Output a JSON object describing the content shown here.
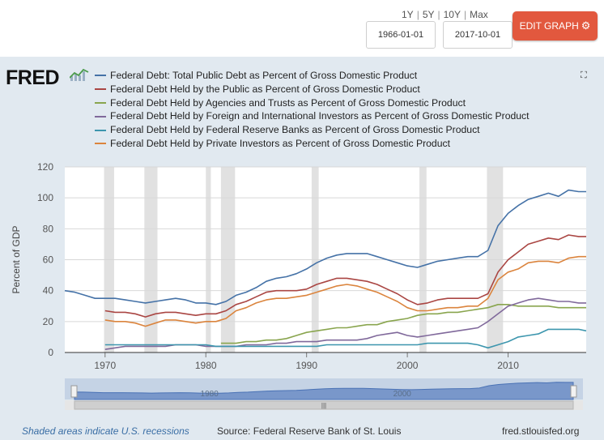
{
  "toolbar": {
    "range_1y": "1Y",
    "range_5y": "5Y",
    "range_10y": "10Y",
    "range_max": "Max",
    "start_date": "1966-01-01",
    "end_date": "2017-10-01",
    "edit_label": "EDIT GRAPH",
    "edit_color": "#e2583e"
  },
  "logo": {
    "text": "FRED"
  },
  "footer": {
    "recession_note": "Shaded areas indicate U.S. recessions",
    "source": "Source: Federal Reserve Bank of St. Louis",
    "site": "fred.stlouisfed.org"
  },
  "chart_data": {
    "type": "line",
    "ylabel": "Percent of GDP",
    "ylim": [
      0,
      120
    ],
    "yticks": [
      0,
      20,
      40,
      60,
      80,
      100,
      120
    ],
    "xlim": [
      1966.0,
      2017.75
    ],
    "xticks": [
      1970,
      1980,
      1990,
      2000,
      2010
    ],
    "recessions": [
      [
        1969.9,
        1970.9
      ],
      [
        1973.9,
        1975.2
      ],
      [
        1980.0,
        1980.5
      ],
      [
        1981.5,
        1982.9
      ],
      [
        1990.5,
        1991.2
      ],
      [
        2001.2,
        2001.9
      ],
      [
        2007.9,
        2009.5
      ]
    ],
    "navigator_labels": [
      "1980",
      "2000"
    ],
    "series": [
      {
        "name": "Federal Debt: Total Public Debt as Percent of Gross Domestic Product",
        "color": "#4572a7",
        "points": [
          [
            1966,
            40
          ],
          [
            1967,
            39
          ],
          [
            1968,
            37
          ],
          [
            1969,
            35
          ],
          [
            1970,
            35
          ],
          [
            1971,
            35
          ],
          [
            1972,
            34
          ],
          [
            1973,
            33
          ],
          [
            1974,
            32
          ],
          [
            1975,
            33
          ],
          [
            1976,
            34
          ],
          [
            1977,
            35
          ],
          [
            1978,
            34
          ],
          [
            1979,
            32
          ],
          [
            1980,
            32
          ],
          [
            1981,
            31
          ],
          [
            1982,
            33
          ],
          [
            1983,
            37
          ],
          [
            1984,
            39
          ],
          [
            1985,
            42
          ],
          [
            1986,
            46
          ],
          [
            1987,
            48
          ],
          [
            1988,
            49
          ],
          [
            1989,
            51
          ],
          [
            1990,
            54
          ],
          [
            1991,
            58
          ],
          [
            1992,
            61
          ],
          [
            1993,
            63
          ],
          [
            1994,
            64
          ],
          [
            1995,
            64
          ],
          [
            1996,
            64
          ],
          [
            1997,
            62
          ],
          [
            1998,
            60
          ],
          [
            1999,
            58
          ],
          [
            2000,
            56
          ],
          [
            2001,
            55
          ],
          [
            2002,
            57
          ],
          [
            2003,
            59
          ],
          [
            2004,
            60
          ],
          [
            2005,
            61
          ],
          [
            2006,
            62
          ],
          [
            2007,
            62
          ],
          [
            2008,
            66
          ],
          [
            2009,
            82
          ],
          [
            2010,
            90
          ],
          [
            2011,
            95
          ],
          [
            2012,
            99
          ],
          [
            2013,
            101
          ],
          [
            2014,
            103
          ],
          [
            2015,
            101
          ],
          [
            2016,
            105
          ],
          [
            2017,
            104
          ],
          [
            2017.75,
            104
          ]
        ]
      },
      {
        "name": "Federal Debt Held by the Public as Percent of Gross Domestic Product",
        "color": "#aa4643",
        "points": [
          [
            1970,
            27
          ],
          [
            1971,
            26
          ],
          [
            1972,
            26
          ],
          [
            1973,
            25
          ],
          [
            1974,
            23
          ],
          [
            1975,
            25
          ],
          [
            1976,
            26
          ],
          [
            1977,
            26
          ],
          [
            1978,
            25
          ],
          [
            1979,
            24
          ],
          [
            1980,
            25
          ],
          [
            1981,
            25
          ],
          [
            1982,
            27
          ],
          [
            1983,
            31
          ],
          [
            1984,
            33
          ],
          [
            1985,
            36
          ],
          [
            1986,
            39
          ],
          [
            1987,
            40
          ],
          [
            1988,
            40
          ],
          [
            1989,
            40
          ],
          [
            1990,
            41
          ],
          [
            1991,
            44
          ],
          [
            1992,
            46
          ],
          [
            1993,
            48
          ],
          [
            1994,
            48
          ],
          [
            1995,
            47
          ],
          [
            1996,
            46
          ],
          [
            1997,
            44
          ],
          [
            1998,
            41
          ],
          [
            1999,
            38
          ],
          [
            2000,
            34
          ],
          [
            2001,
            31
          ],
          [
            2002,
            32
          ],
          [
            2003,
            34
          ],
          [
            2004,
            35
          ],
          [
            2005,
            35
          ],
          [
            2006,
            35
          ],
          [
            2007,
            35
          ],
          [
            2008,
            38
          ],
          [
            2009,
            52
          ],
          [
            2010,
            60
          ],
          [
            2011,
            65
          ],
          [
            2012,
            70
          ],
          [
            2013,
            72
          ],
          [
            2014,
            74
          ],
          [
            2015,
            73
          ],
          [
            2016,
            76
          ],
          [
            2017,
            75
          ],
          [
            2017.75,
            75
          ]
        ]
      },
      {
        "name": "Federal Debt Held by Agencies and Trusts as Percent of Gross Domestic Product",
        "color": "#89a54e",
        "points": [
          [
            1981.5,
            6
          ],
          [
            1983,
            6
          ],
          [
            1984,
            7
          ],
          [
            1985,
            7
          ],
          [
            1986,
            8
          ],
          [
            1987,
            8
          ],
          [
            1988,
            9
          ],
          [
            1989,
            11
          ],
          [
            1990,
            13
          ],
          [
            1991,
            14
          ],
          [
            1992,
            15
          ],
          [
            1993,
            16
          ],
          [
            1994,
            16
          ],
          [
            1995,
            17
          ],
          [
            1996,
            18
          ],
          [
            1997,
            18
          ],
          [
            1998,
            20
          ],
          [
            1999,
            21
          ],
          [
            2000,
            22
          ],
          [
            2001,
            24
          ],
          [
            2002,
            25
          ],
          [
            2003,
            25
          ],
          [
            2004,
            26
          ],
          [
            2005,
            26
          ],
          [
            2006,
            27
          ],
          [
            2007,
            28
          ],
          [
            2008,
            29
          ],
          [
            2009,
            31
          ],
          [
            2010,
            31
          ],
          [
            2011,
            30
          ],
          [
            2012,
            30
          ],
          [
            2013,
            30
          ],
          [
            2014,
            30
          ],
          [
            2015,
            29
          ],
          [
            2016,
            29
          ],
          [
            2017,
            29
          ],
          [
            2017.75,
            29
          ]
        ]
      },
      {
        "name": "Federal Debt Held by Foreign and International Investors as Percent of Gross Domestic Product",
        "color": "#80699b",
        "points": [
          [
            1970,
            2
          ],
          [
            1971,
            3
          ],
          [
            1972,
            4
          ],
          [
            1973,
            4
          ],
          [
            1974,
            4
          ],
          [
            1975,
            4
          ],
          [
            1976,
            4
          ],
          [
            1977,
            5
          ],
          [
            1978,
            5
          ],
          [
            1979,
            5
          ],
          [
            1980,
            4
          ],
          [
            1981,
            4
          ],
          [
            1982,
            4
          ],
          [
            1983,
            4
          ],
          [
            1984,
            5
          ],
          [
            1985,
            5
          ],
          [
            1986,
            5
          ],
          [
            1987,
            6
          ],
          [
            1988,
            6
          ],
          [
            1989,
            7
          ],
          [
            1990,
            7
          ],
          [
            1991,
            7
          ],
          [
            1992,
            8
          ],
          [
            1993,
            8
          ],
          [
            1994,
            8
          ],
          [
            1995,
            8
          ],
          [
            1996,
            9
          ],
          [
            1997,
            11
          ],
          [
            1998,
            12
          ],
          [
            1999,
            13
          ],
          [
            2000,
            11
          ],
          [
            2001,
            10
          ],
          [
            2002,
            11
          ],
          [
            2003,
            12
          ],
          [
            2004,
            13
          ],
          [
            2005,
            14
          ],
          [
            2006,
            15
          ],
          [
            2007,
            16
          ],
          [
            2008,
            20
          ],
          [
            2009,
            25
          ],
          [
            2010,
            30
          ],
          [
            2011,
            32
          ],
          [
            2012,
            34
          ],
          [
            2013,
            35
          ],
          [
            2014,
            34
          ],
          [
            2015,
            33
          ],
          [
            2016,
            33
          ],
          [
            2017,
            32
          ],
          [
            2017.75,
            32
          ]
        ]
      },
      {
        "name": "Federal Debt Held by Federal Reserve Banks as Percent of Gross Domestic Product",
        "color": "#3d96ae",
        "points": [
          [
            1970,
            5
          ],
          [
            1971,
            5
          ],
          [
            1972,
            5
          ],
          [
            1973,
            5
          ],
          [
            1974,
            5
          ],
          [
            1975,
            5
          ],
          [
            1976,
            5
          ],
          [
            1977,
            5
          ],
          [
            1978,
            5
          ],
          [
            1979,
            5
          ],
          [
            1980,
            5
          ],
          [
            1981,
            4
          ],
          [
            1982,
            4
          ],
          [
            1983,
            4
          ],
          [
            1984,
            4
          ],
          [
            1985,
            4
          ],
          [
            1986,
            4
          ],
          [
            1987,
            4
          ],
          [
            1988,
            4
          ],
          [
            1989,
            4
          ],
          [
            1990,
            4
          ],
          [
            1991,
            4
          ],
          [
            1992,
            5
          ],
          [
            1993,
            5
          ],
          [
            1994,
            5
          ],
          [
            1995,
            5
          ],
          [
            1996,
            5
          ],
          [
            1997,
            5
          ],
          [
            1998,
            5
          ],
          [
            1999,
            5
          ],
          [
            2000,
            5
          ],
          [
            2001,
            5
          ],
          [
            2002,
            6
          ],
          [
            2003,
            6
          ],
          [
            2004,
            6
          ],
          [
            2005,
            6
          ],
          [
            2006,
            6
          ],
          [
            2007,
            5
          ],
          [
            2008,
            3
          ],
          [
            2009,
            5
          ],
          [
            2010,
            7
          ],
          [
            2011,
            10
          ],
          [
            2012,
            11
          ],
          [
            2013,
            12
          ],
          [
            2014,
            15
          ],
          [
            2015,
            15
          ],
          [
            2016,
            15
          ],
          [
            2017,
            15
          ],
          [
            2017.75,
            14
          ]
        ]
      },
      {
        "name": "Federal Debt Held by Private Investors as Percent of Gross Domestic Product",
        "color": "#db843d",
        "points": [
          [
            1970,
            21
          ],
          [
            1971,
            20
          ],
          [
            1972,
            20
          ],
          [
            1973,
            19
          ],
          [
            1974,
            17
          ],
          [
            1975,
            19
          ],
          [
            1976,
            21
          ],
          [
            1977,
            21
          ],
          [
            1978,
            20
          ],
          [
            1979,
            19
          ],
          [
            1980,
            20
          ],
          [
            1981,
            20
          ],
          [
            1982,
            22
          ],
          [
            1983,
            27
          ],
          [
            1984,
            29
          ],
          [
            1985,
            32
          ],
          [
            1986,
            34
          ],
          [
            1987,
            35
          ],
          [
            1988,
            35
          ],
          [
            1989,
            36
          ],
          [
            1990,
            37
          ],
          [
            1991,
            39
          ],
          [
            1992,
            41
          ],
          [
            1993,
            43
          ],
          [
            1994,
            44
          ],
          [
            1995,
            43
          ],
          [
            1996,
            41
          ],
          [
            1997,
            39
          ],
          [
            1998,
            36
          ],
          [
            1999,
            33
          ],
          [
            2000,
            29
          ],
          [
            2001,
            27
          ],
          [
            2002,
            27
          ],
          [
            2003,
            28
          ],
          [
            2004,
            29
          ],
          [
            2005,
            29
          ],
          [
            2006,
            30
          ],
          [
            2007,
            30
          ],
          [
            2008,
            35
          ],
          [
            2009,
            47
          ],
          [
            2010,
            52
          ],
          [
            2011,
            54
          ],
          [
            2012,
            58
          ],
          [
            2013,
            59
          ],
          [
            2014,
            59
          ],
          [
            2015,
            58
          ],
          [
            2016,
            61
          ],
          [
            2017,
            62
          ],
          [
            2017.75,
            62
          ]
        ]
      }
    ]
  }
}
